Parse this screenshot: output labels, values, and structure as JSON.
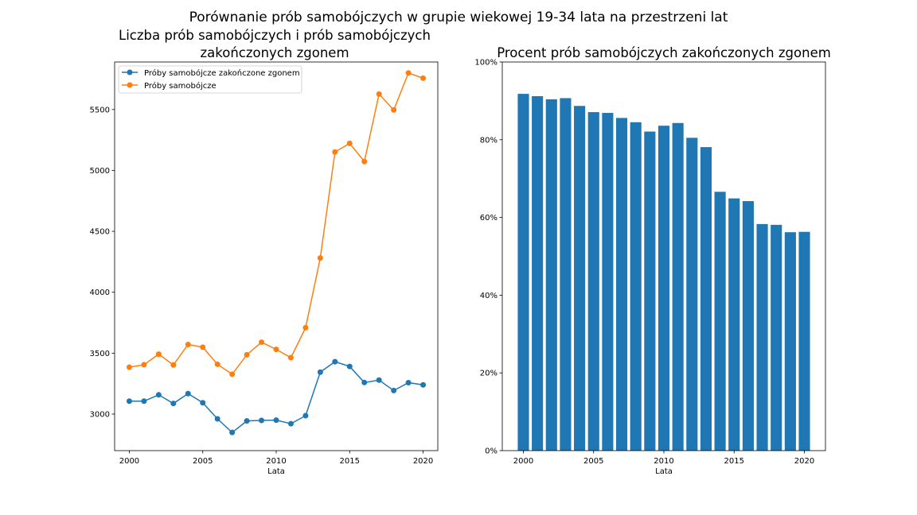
{
  "figure": {
    "suptitle": "Porównanie prób samobójczych w grupie wiekowej 19-34 lata na przestrzeni lat"
  },
  "chart_data": [
    {
      "type": "line",
      "title_lines": [
        "Liczba prób samobójczych i prób samobójczych",
        "zakończonych zgonem"
      ],
      "xlabel": "Lata",
      "ylabel": "",
      "x": [
        2000,
        2001,
        2002,
        2003,
        2004,
        2005,
        2006,
        2007,
        2008,
        2009,
        2010,
        2011,
        2012,
        2013,
        2014,
        2015,
        2016,
        2017,
        2018,
        2019,
        2020
      ],
      "xlim": [
        1999,
        2021
      ],
      "ylim": [
        2700,
        5890
      ],
      "xticks": [
        2000,
        2005,
        2010,
        2015,
        2020
      ],
      "yticks": [
        3000,
        3500,
        4000,
        4500,
        5000,
        5500
      ],
      "grid": false,
      "legend_position": "upper-left",
      "series": [
        {
          "name": "Próby samobójcze zakończone zgonem",
          "color": "#1f77b4",
          "marker": "circle",
          "values": [
            3106,
            3106,
            3158,
            3087,
            3168,
            3093,
            2961,
            2849,
            2944,
            2948,
            2950,
            2921,
            2987,
            3344,
            3430,
            3391,
            3259,
            3279,
            3193,
            3258,
            3240
          ]
        },
        {
          "name": "Próby samobójcze",
          "color": "#ff7f0e",
          "marker": "circle",
          "values": [
            3385,
            3405,
            3492,
            3403,
            3571,
            3549,
            3409,
            3327,
            3487,
            3590,
            3531,
            3463,
            3709,
            4281,
            5151,
            5222,
            5073,
            5627,
            5496,
            5800,
            5757
          ]
        }
      ]
    },
    {
      "type": "bar",
      "title_lines": [
        "Procent prób samobójczych zakończonych zgonem"
      ],
      "xlabel": "Lata",
      "ylabel": "",
      "categories": [
        2000,
        2001,
        2002,
        2003,
        2004,
        2005,
        2006,
        2007,
        2008,
        2009,
        2010,
        2011,
        2012,
        2013,
        2014,
        2015,
        2016,
        2017,
        2018,
        2019,
        2020
      ],
      "values": [
        91.8,
        91.2,
        90.4,
        90.7,
        88.7,
        87.1,
        86.9,
        85.6,
        84.5,
        82.1,
        83.6,
        84.3,
        80.5,
        78.1,
        66.6,
        64.9,
        64.2,
        58.3,
        58.1,
        56.2,
        56.3
      ],
      "xlim": [
        1998.5,
        2021.5
      ],
      "ylim": [
        0,
        100
      ],
      "xticks": [
        2000,
        2005,
        2010,
        2015,
        2020
      ],
      "yticks": [
        0,
        20,
        40,
        60,
        80,
        100
      ],
      "ytick_labels": [
        "0%",
        "20%",
        "40%",
        "60%",
        "80%",
        "100%"
      ],
      "bar_color": "#1f77b4",
      "grid": false
    }
  ]
}
